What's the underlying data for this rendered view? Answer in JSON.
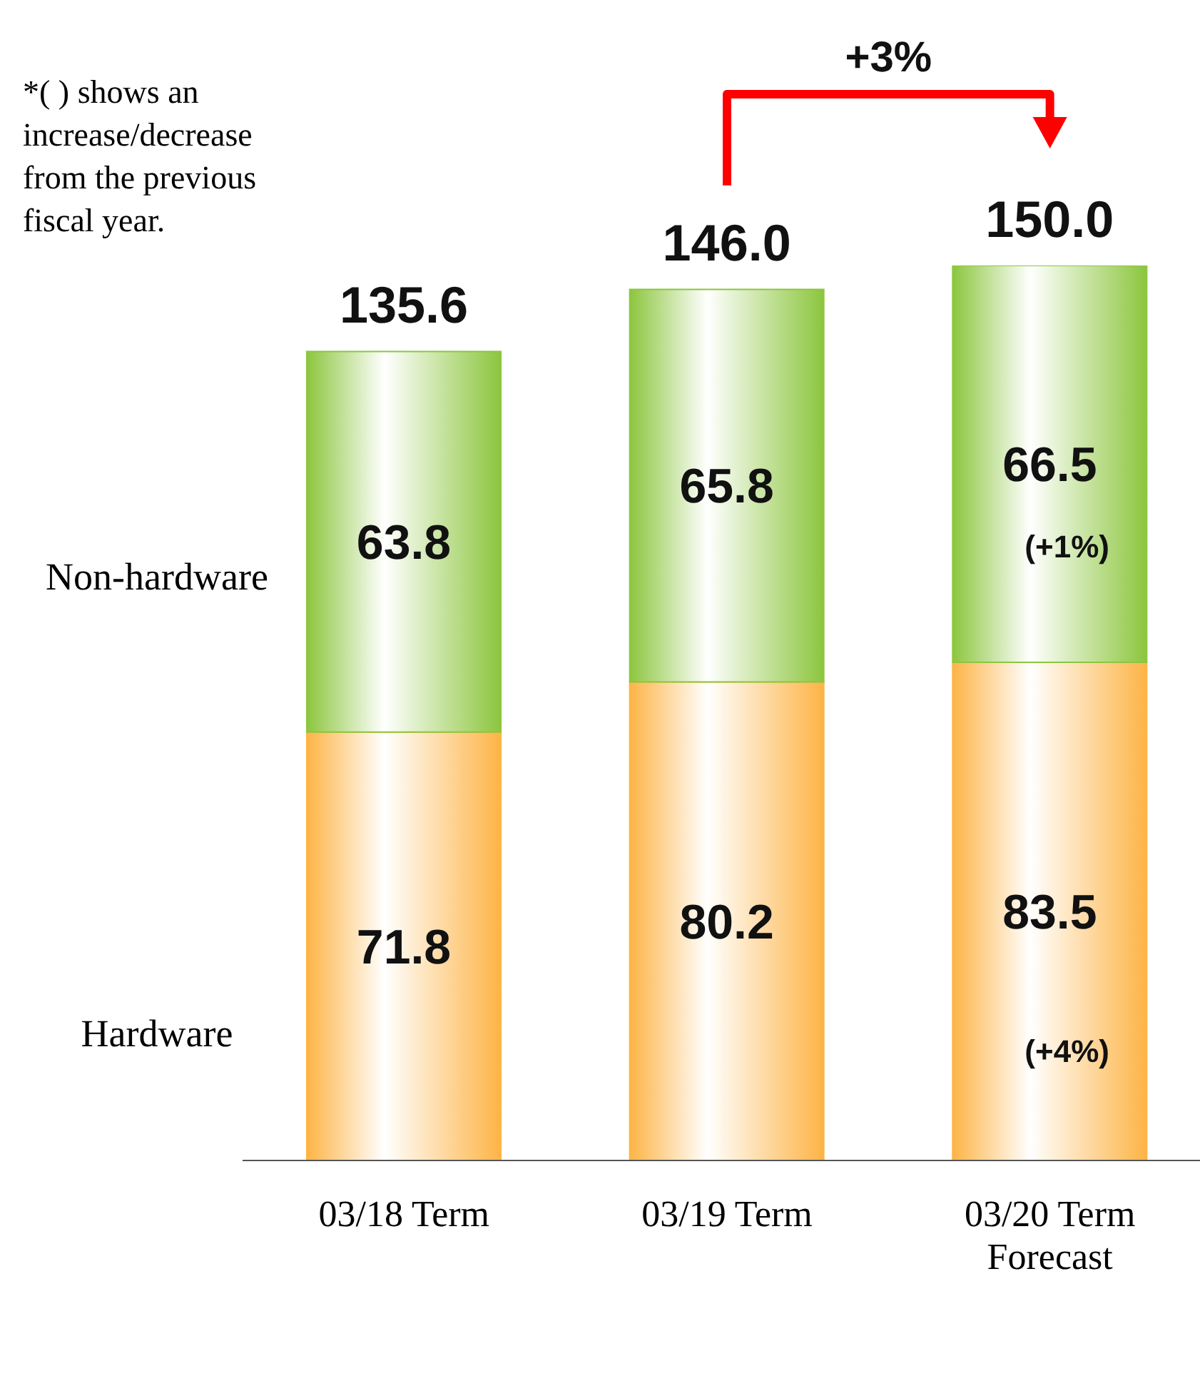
{
  "chart_data": {
    "type": "bar",
    "stacked": true,
    "data_labels": true,
    "categories": [
      "03/18 Term",
      "03/19 Term",
      "03/20 Term\nForecast"
    ],
    "series": [
      {
        "name": "Hardware",
        "color": "#fdb446",
        "values": [
          71.8,
          80.2,
          83.5
        ]
      },
      {
        "name": "Non-hardware",
        "color": "#8cc63e",
        "values": [
          63.8,
          65.8,
          66.5
        ]
      }
    ],
    "totals": [
      "135.6",
      "146.0",
      "150.0"
    ],
    "annotations": [
      "*(  ) shows an increase/decrease from the previous fiscal year.",
      "+3%",
      "(+4%)",
      "(+1%)"
    ]
  }
}
